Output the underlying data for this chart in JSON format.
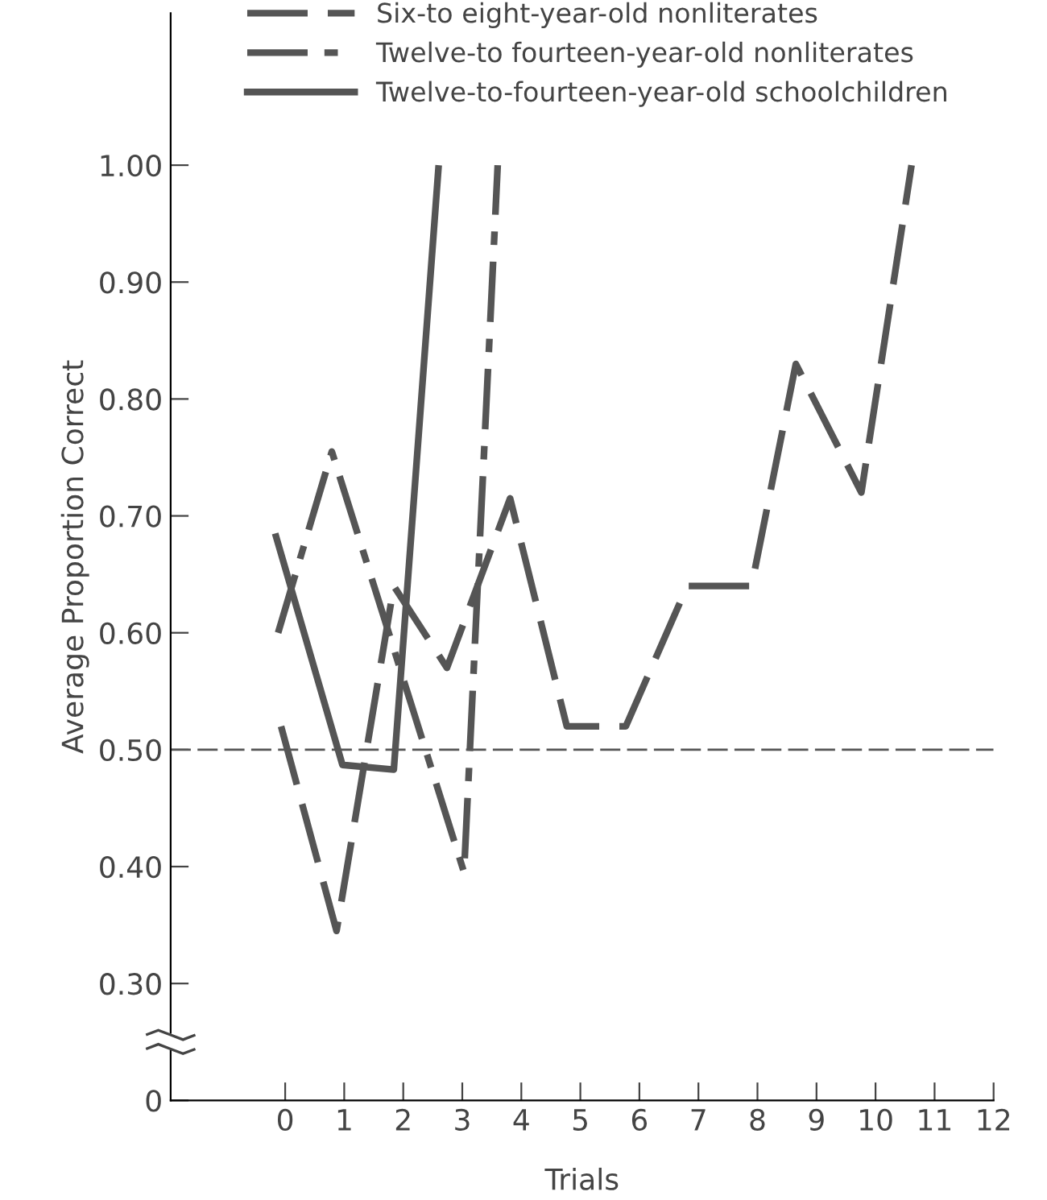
{
  "chart_data": {
    "type": "line",
    "xlabel": "Trials",
    "ylabel": "Average Proportion Correct",
    "xlim": [
      -1.94,
      12
    ],
    "xticks": [
      0,
      1,
      2,
      3,
      4,
      5,
      6,
      7,
      8,
      9,
      10,
      11,
      12
    ],
    "ylim": [
      0.2,
      1.13
    ],
    "yticks": [
      {
        "value": 0.2,
        "label": "0"
      },
      {
        "value": 0.3,
        "label": "0.30"
      },
      {
        "value": 0.4,
        "label": "0.40"
      },
      {
        "value": 0.5,
        "label": "0.50"
      },
      {
        "value": 0.6,
        "label": "0.60"
      },
      {
        "value": 0.7,
        "label": "0.70"
      },
      {
        "value": 0.8,
        "label": "0.80"
      },
      {
        "value": 0.9,
        "label": "0.90"
      },
      {
        "value": 1.0,
        "label": "1.00"
      }
    ],
    "grid": false,
    "legend": "top",
    "marker": "none",
    "series": [
      {
        "name": "Six-to eight-year-old nonliterates",
        "color": "#555555",
        "line_style": "dashed",
        "x": [
          -0.07,
          0.87,
          1.84,
          2.74,
          3.81,
          4.77,
          5.77,
          6.81,
          7.9,
          8.65,
          9.76,
          10.61
        ],
        "values": [
          0.52,
          0.345,
          0.64,
          0.57,
          0.715,
          0.52,
          0.52,
          0.64,
          0.64,
          0.83,
          0.72,
          1.0
        ]
      },
      {
        "name": "Twelve-to fourteen-year-old nonliterates",
        "color": "#555555",
        "line_style": "dashdot",
        "x": [
          -0.12,
          0.79,
          3.03,
          3.6
        ],
        "values": [
          0.6,
          0.755,
          0.395,
          1.0
        ]
      },
      {
        "name": "Twelve-to-fourteen-year-old schoolchildren",
        "color": "#555555",
        "line_style": "solid",
        "x": [
          -0.17,
          0.97,
          1.84,
          2.6
        ],
        "values": [
          0.685,
          0.487,
          0.483,
          1.0
        ]
      }
    ],
    "ref_lines": [
      {
        "axis": "y",
        "value": 0.5,
        "label": null,
        "color": "#555555",
        "line_style": "dashed"
      }
    ]
  }
}
